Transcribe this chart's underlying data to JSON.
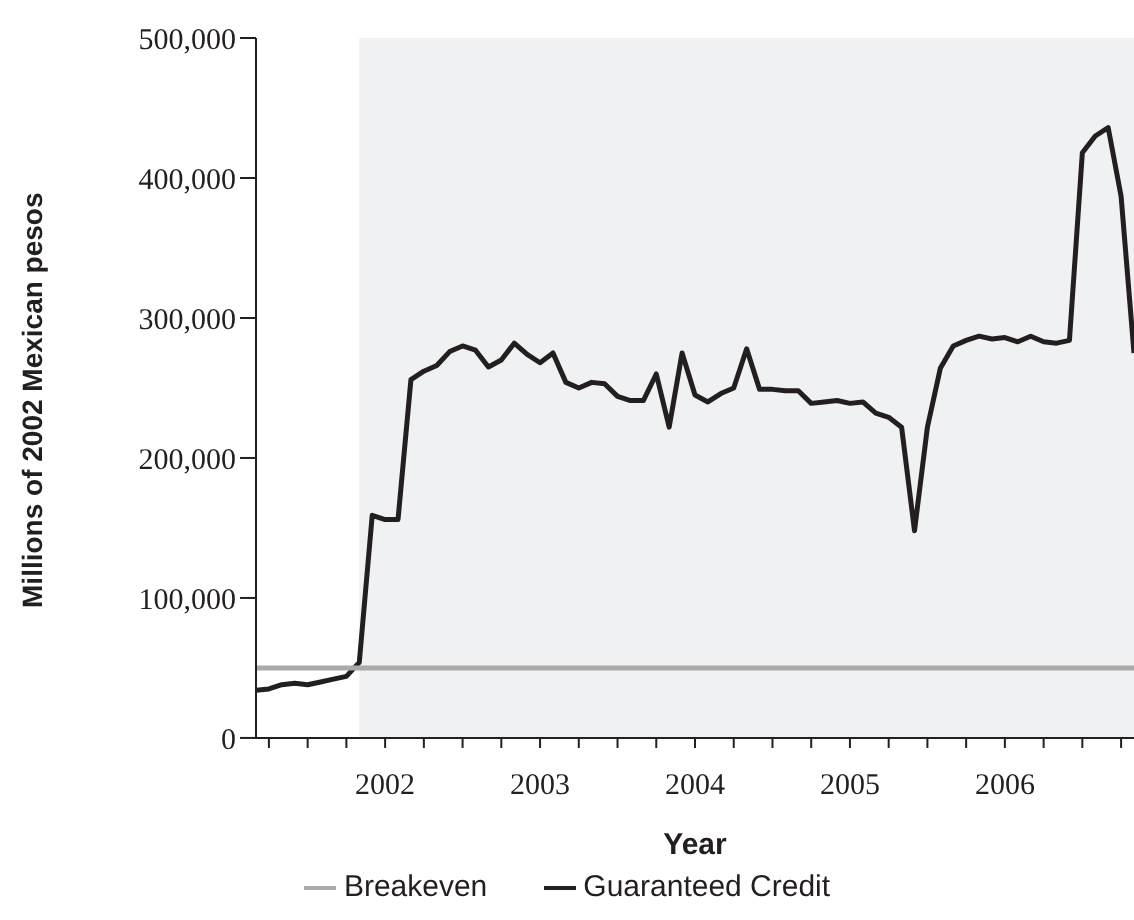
{
  "chart_data": {
    "type": "line",
    "xlabel": "Year",
    "ylabel": "Millions of 2002 Mexican pesos",
    "x": [
      "2001-09",
      "2001-10",
      "2001-11",
      "2001-12",
      "2002-01",
      "2002-02",
      "2002-03",
      "2002-04",
      "2002-05",
      "2002-06",
      "2002-07",
      "2002-08",
      "2002-09",
      "2002-10",
      "2002-11",
      "2002-12",
      "2003-01",
      "2003-02",
      "2003-03",
      "2003-04",
      "2003-05",
      "2003-06",
      "2003-07",
      "2003-08",
      "2003-09",
      "2003-10",
      "2003-11",
      "2003-12",
      "2004-01",
      "2004-02",
      "2004-03",
      "2004-04",
      "2004-05",
      "2004-06",
      "2004-07",
      "2004-08",
      "2004-09",
      "2004-10",
      "2004-11",
      "2004-12",
      "2005-01",
      "2005-02",
      "2005-03",
      "2005-04",
      "2005-05",
      "2005-06",
      "2005-07",
      "2005-08",
      "2005-09",
      "2005-10",
      "2005-11",
      "2005-12",
      "2006-01",
      "2006-02",
      "2006-03",
      "2006-04",
      "2006-05",
      "2006-06",
      "2006-07",
      "2006-08",
      "2006-09",
      "2006-10",
      "2006-11",
      "2006-12",
      "2007-01",
      "2007-02",
      "2007-03",
      "2007-04",
      "2007-05"
    ],
    "series": [
      {
        "name": "Guaranteed Credit",
        "color": "#231f20",
        "values": [
          34000,
          35000,
          38000,
          39000,
          38000,
          40000,
          42000,
          44000,
          54000,
          159000,
          156000,
          156000,
          256000,
          262000,
          266000,
          276000,
          280000,
          277000,
          265000,
          270000,
          282000,
          274000,
          268000,
          275000,
          254000,
          250000,
          254000,
          253000,
          244000,
          241000,
          241000,
          260000,
          222000,
          275000,
          245000,
          240000,
          246000,
          250000,
          278000,
          249000,
          249000,
          248000,
          248000,
          239000,
          240000,
          241000,
          239000,
          240000,
          232000,
          229000,
          222000,
          148000,
          222000,
          264000,
          280000,
          284000,
          287000,
          285000,
          286000,
          283000,
          287000,
          283000,
          282000,
          284000,
          418000,
          430000,
          436000,
          387000,
          275000
        ]
      },
      {
        "name": "Breakeven",
        "color": "#aaaaaa",
        "values": [
          50000,
          50000,
          50000,
          50000,
          50000,
          50000,
          50000,
          50000,
          50000,
          50000,
          50000,
          50000,
          50000,
          50000,
          50000,
          50000,
          50000,
          50000,
          50000,
          50000,
          50000,
          50000,
          50000,
          50000,
          50000,
          50000,
          50000,
          50000,
          50000,
          50000,
          50000,
          50000,
          50000,
          50000,
          50000,
          50000,
          50000,
          50000,
          50000,
          50000,
          50000,
          50000,
          50000,
          50000,
          50000,
          50000,
          50000,
          50000,
          50000,
          50000,
          50000,
          50000,
          50000,
          50000,
          50000,
          50000,
          50000,
          50000,
          50000,
          50000,
          50000,
          50000,
          50000,
          50000,
          50000,
          50000,
          50000,
          50000,
          50000
        ]
      }
    ],
    "xlim": [
      "2001-09",
      "2007-05"
    ],
    "xticks": [
      {
        "value": "2001-10",
        "label": null
      },
      {
        "value": "2002-01",
        "label": null
      },
      {
        "value": "2002-04",
        "label": null
      },
      {
        "value": "2002-07",
        "label": "2002"
      },
      {
        "value": "2002-10",
        "label": null
      },
      {
        "value": "2003-01",
        "label": null
      },
      {
        "value": "2003-04",
        "label": null
      },
      {
        "value": "2003-07",
        "label": "2003"
      },
      {
        "value": "2003-10",
        "label": null
      },
      {
        "value": "2004-01",
        "label": null
      },
      {
        "value": "2004-04",
        "label": null
      },
      {
        "value": "2004-07",
        "label": "2004"
      },
      {
        "value": "2004-10",
        "label": null
      },
      {
        "value": "2005-01",
        "label": null
      },
      {
        "value": "2005-04",
        "label": null
      },
      {
        "value": "2005-07",
        "label": "2005"
      },
      {
        "value": "2005-10",
        "label": null
      },
      {
        "value": "2006-01",
        "label": null
      },
      {
        "value": "2006-04",
        "label": null
      },
      {
        "value": "2006-07",
        "label": "2006"
      },
      {
        "value": "2006-10",
        "label": null
      },
      {
        "value": "2007-01",
        "label": null
      },
      {
        "value": "2007-04",
        "label": null
      }
    ],
    "ylim": [
      0,
      500000
    ],
    "yticks": [
      0,
      {
        "value": 100000,
        "label": "100,000"
      },
      {
        "value": 200000,
        "label": "200,000"
      },
      {
        "value": 300000,
        "label": "300,000"
      },
      {
        "value": 400000,
        "label": "400,000"
      },
      {
        "value": 500000,
        "label": "500,000"
      }
    ],
    "bands": [
      {
        "axis": "x",
        "from": "2002-05",
        "to": "2007-05",
        "color": "#f0f1f3"
      }
    ],
    "legend": "bottom",
    "grid": false
  }
}
